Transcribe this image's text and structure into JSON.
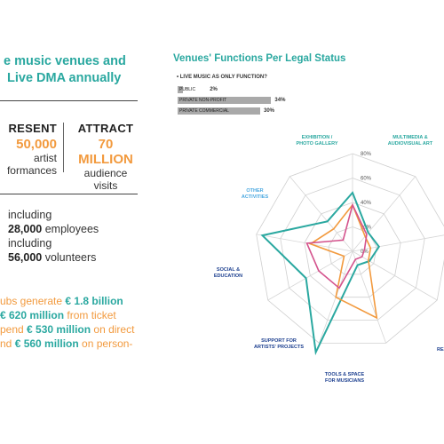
{
  "left": {
    "headline": [
      "e music venues and",
      "Live DMA annually"
    ],
    "present": {
      "head": "RESENT",
      "value": "50,000",
      "line1": "artist",
      "line2": "formances"
    },
    "attract": {
      "head": "ATTRACT",
      "value": "70 MILLION",
      "line1": "audience",
      "line2": "visits"
    },
    "employment": {
      "inc1": "including",
      "employees": "28,000",
      "employees_suffix": " employees",
      "inc2": "including",
      "volunteers": "56,000",
      "volunteers_suffix": " volunteers"
    },
    "finance": {
      "l1_pre": "ubs generate ",
      "l1_hl": "€ 1.8 billion",
      "l2_hl": "€ 620 million",
      "l2_post": " from ticket",
      "l3_pre": "pend ",
      "l3_hl": "€ 530 million",
      "l3_post": " on direct",
      "l4_pre": "nd ",
      "l4_hl": "€ 560 million",
      "l4_post": " on person-"
    }
  },
  "chart_data": [
    {
      "type": "bar",
      "title": "Venues' Functions Per Legal Status",
      "subtitle": "• LIVE MUSIC AS ONLY FUNCTION?",
      "categories": [
        "PUBLIC",
        "PRIVATE NON-PROFIT",
        "PRIVATE COMMERCIAL"
      ],
      "values": [
        2,
        34,
        30
      ],
      "value_labels": [
        "2%",
        "34%",
        "30%"
      ],
      "color": "#a9a9a9"
    },
    {
      "type": "radar",
      "axes": [
        "EXHIBITION / PHOTO GALLERY",
        "MULTIMEDIA & AUDIOVISUAL ART",
        "",
        "",
        "RES",
        "TOOLS & SPACE FOR MUSICIANS",
        "SUPPORT FOR ARTISTS' PROJECTS",
        "SOCIAL & EDUCATION",
        "OTHER ACTIVITIES"
      ],
      "axis_colors": [
        "#2aa8a0",
        "#2aa8a0",
        "#2aa8a0",
        "#2aa8a0",
        "#1c3f8f",
        "#1c3f8f",
        "#1c3f8f",
        "#1c3f8f",
        "#4aa8e0"
      ],
      "axis_lines": [
        [
          "EXHIBITION /",
          "PHOTO GALLERY"
        ],
        [
          "MULTIMEDIA &",
          "AUDIOVISUAL ART"
        ],
        [],
        [],
        [
          "RES"
        ],
        [
          "TOOLS & SPACE",
          "FOR MUSICIANS"
        ],
        [
          "SUPPORT FOR",
          "ARTISTS' PROJECTS"
        ],
        [
          "SOCIAL &",
          "EDUCATION"
        ],
        [
          "OTHER",
          "ACTIVITIES"
        ]
      ],
      "rlim": [
        0,
        80
      ],
      "ticks": [
        0,
        20,
        40,
        60,
        80
      ],
      "tick_labels": [
        "0%",
        "20%",
        "40%",
        "60%",
        "80%"
      ],
      "series": [
        {
          "color": "#2aa8a0",
          "values": [
            48,
            20,
            22,
            16,
            12,
            88,
            44,
            75,
            32
          ]
        },
        {
          "color": "#f29a3e",
          "values": [
            38,
            16,
            15,
            15,
            58,
            40,
            8,
            35,
            24
          ]
        },
        {
          "color": "#d4538d",
          "values": [
            38,
            18,
            10,
            9,
            7,
            32,
            32,
            38,
            12
          ]
        }
      ]
    }
  ]
}
